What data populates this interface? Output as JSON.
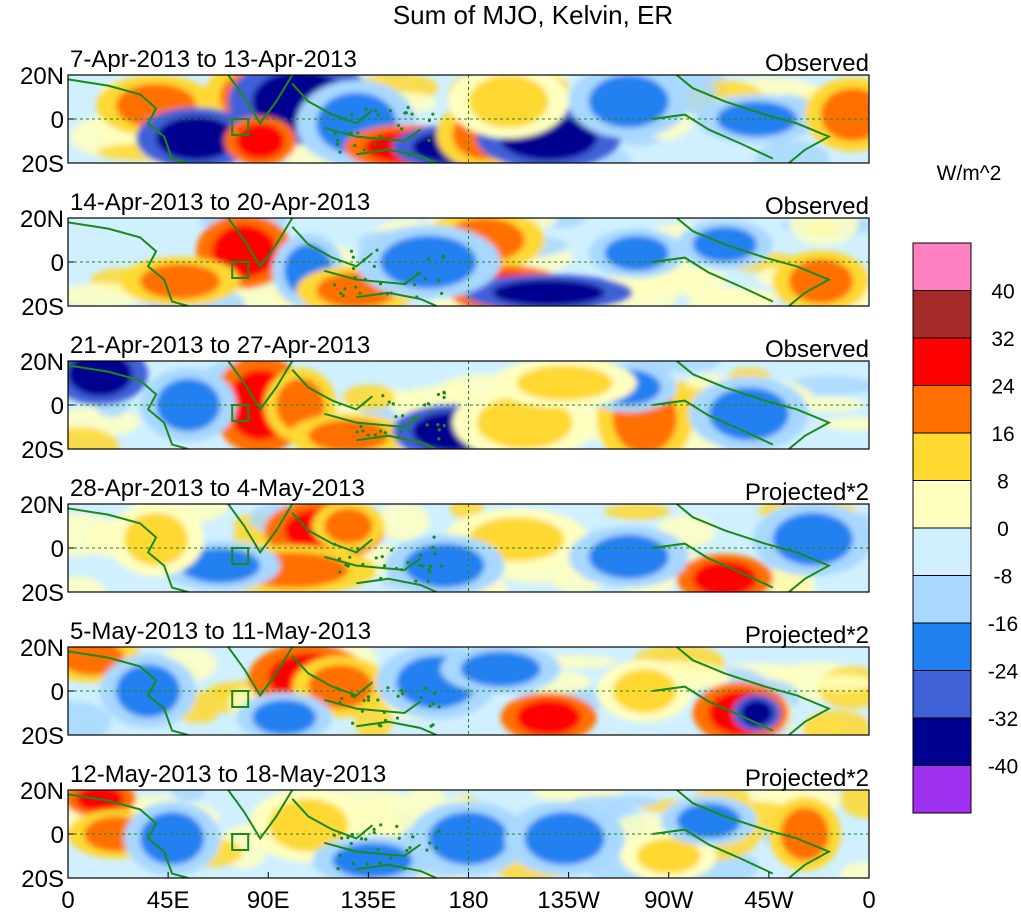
{
  "title": "Sum of MJO, Kelvin, ER",
  "panels": [
    {
      "date_range": "7-Apr-2013 to 13-Apr-2013",
      "label": "Observed"
    },
    {
      "date_range": "14-Apr-2013 to 20-Apr-2013",
      "label": "Observed"
    },
    {
      "date_range": "21-Apr-2013 to 27-Apr-2013",
      "label": "Observed"
    },
    {
      "date_range": "28-Apr-2013 to 4-May-2013",
      "label": "Projected*2"
    },
    {
      "date_range": "5-May-2013 to 11-May-2013",
      "label": "Projected*2"
    },
    {
      "date_range": "12-May-2013 to 18-May-2013",
      "label": "Projected*2"
    }
  ],
  "lat_labels": [
    "20N",
    "0",
    "20S"
  ],
  "lon_labels": [
    "0",
    "45E",
    "90E",
    "135E",
    "180",
    "135W",
    "90W",
    "45W",
    "0"
  ],
  "colorbar": {
    "unit": "W/m^2",
    "labels": [
      "40",
      "32",
      "24",
      "16",
      "8",
      "0",
      "-8",
      "-16",
      "-24",
      "-32",
      "-40"
    ],
    "colors": [
      "#ff80c0",
      "#a52a2a",
      "#ff0000",
      "#ff7000",
      "#ffd830",
      "#ffffc0",
      "#d0f0ff",
      "#a8d8ff",
      "#2080f0",
      "#4060d8",
      "#000090",
      "#a030f0"
    ]
  },
  "map_colors": {
    "land_outline": "#1a8a1a",
    "reference_lines": "#1a8a1a"
  }
}
